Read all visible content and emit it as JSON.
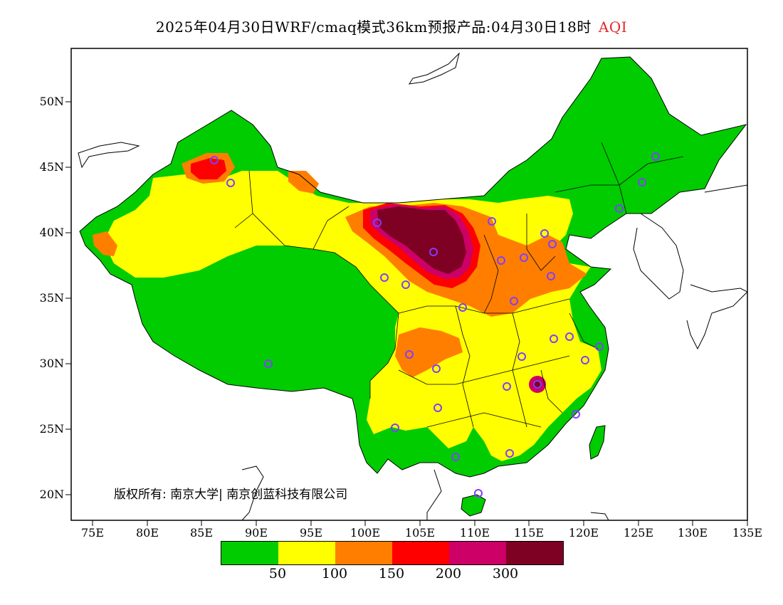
{
  "title": {
    "main": "2025年04月30日WRF/cmaq模式36km预报产品:04月30日18时",
    "aqi": "AQI"
  },
  "lat_labels": [
    "50N",
    "45N",
    "40N",
    "35N",
    "30N",
    "25N",
    "20N"
  ],
  "lon_labels": [
    "75E",
    "80E",
    "85E",
    "90E",
    "95E",
    "100E",
    "105E",
    "110E",
    "115E",
    "120E",
    "125E",
    "130E",
    "135E"
  ],
  "copyright": "版权所有: 南京大学| 南京创蓝科技有限公司",
  "colorbar": {
    "colors": [
      "#00cc00",
      "#ffff00",
      "#ff7e00",
      "#ff0000",
      "#cc0066",
      "#7e0023"
    ],
    "labels": [
      "50",
      "100",
      "150",
      "200",
      "300"
    ]
  }
}
